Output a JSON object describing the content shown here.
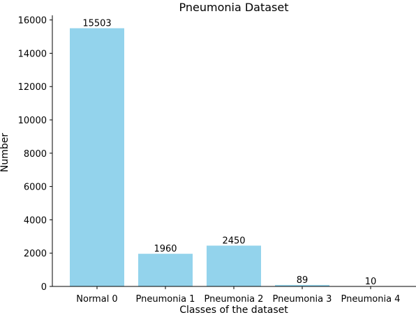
{
  "chart_data": {
    "type": "bar",
    "title": "Pneumonia Dataset",
    "xlabel": "Classes of the dataset",
    "ylabel": "Number",
    "categories": [
      "Normal 0",
      "Pneumonia 1",
      "Pneumonia 2",
      "Pneumonia 3",
      "Pneumonia 4"
    ],
    "values": [
      15503,
      1960,
      2450,
      89,
      10
    ],
    "data_labels": [
      "15503",
      "1960",
      "2450",
      "89",
      "10"
    ],
    "yticks": [
      0,
      2000,
      4000,
      6000,
      8000,
      10000,
      12000,
      14000,
      16000
    ],
    "ytick_labels": [
      "0",
      "2000",
      "4000",
      "6000",
      "8000",
      "10000",
      "12000",
      "14000",
      "16000"
    ],
    "ylim": [
      0,
      16278
    ],
    "grid": false,
    "legend": false,
    "bar_color": "#93d3ec",
    "axis_color": "#000000"
  }
}
